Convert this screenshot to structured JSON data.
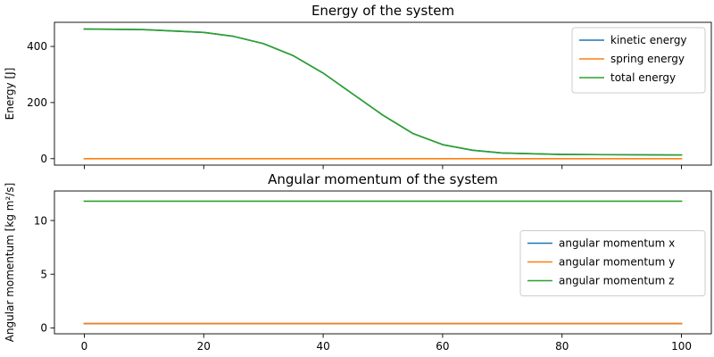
{
  "chart_data": [
    {
      "type": "line",
      "title": "Energy of the system",
      "xlabel": "",
      "ylabel": "Energy [J]",
      "xlim": [
        -5,
        105
      ],
      "ylim": [
        -23,
        486
      ],
      "xticks": [
        0,
        20,
        40,
        60,
        80,
        100
      ],
      "xtick_labels_visible": false,
      "yticks": [
        0,
        200,
        400
      ],
      "grid": false,
      "legend_position": "top-right",
      "series": [
        {
          "name": "kinetic energy",
          "color": "#1f77b4",
          "x": [
            0,
            10,
            20,
            25,
            30,
            35,
            40,
            45,
            50,
            55,
            60,
            65,
            70,
            80,
            90,
            100
          ],
          "values": [
            462,
            460,
            450,
            436,
            410,
            367,
            305,
            230,
            155,
            90,
            50,
            30,
            20,
            15,
            14,
            13
          ]
        },
        {
          "name": "spring energy",
          "color": "#ff7f0e",
          "x": [
            0,
            100
          ],
          "values": [
            0,
            0
          ]
        },
        {
          "name": "total energy",
          "color": "#2ca02c",
          "x": [
            0,
            10,
            20,
            25,
            30,
            35,
            40,
            45,
            50,
            55,
            60,
            65,
            70,
            80,
            90,
            100
          ],
          "values": [
            462,
            460,
            450,
            436,
            410,
            367,
            305,
            230,
            155,
            90,
            50,
            30,
            20,
            15,
            14,
            13
          ]
        }
      ]
    },
    {
      "type": "line",
      "title": "Angular momentum of the system",
      "xlabel": "",
      "ylabel": "Angular momentum [kg m²/s]",
      "xlim": [
        -5,
        105
      ],
      "ylim": [
        -0.55,
        12.75
      ],
      "xticks": [
        0,
        20,
        40,
        60,
        80,
        100
      ],
      "xtick_labels_visible": true,
      "yticks": [
        0,
        5,
        10
      ],
      "grid": false,
      "legend_position": "center-right",
      "series": [
        {
          "name": "angular momentum x",
          "color": "#1f77b4",
          "x": [
            0,
            100
          ],
          "values": [
            0.4,
            0.4
          ]
        },
        {
          "name": "angular momentum y",
          "color": "#ff7f0e",
          "x": [
            0,
            100
          ],
          "values": [
            0.4,
            0.4
          ]
        },
        {
          "name": "angular momentum z",
          "color": "#2ca02c",
          "x": [
            0,
            100
          ],
          "values": [
            11.8,
            11.8
          ]
        }
      ]
    }
  ]
}
